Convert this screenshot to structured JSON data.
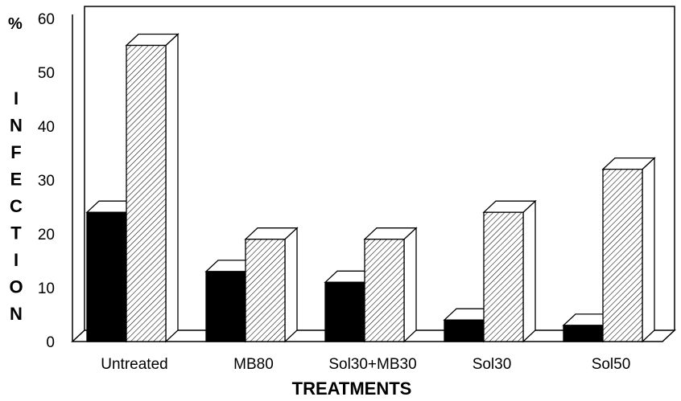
{
  "chart_data": {
    "type": "bar",
    "title": "",
    "xlabel": "TREATMENTS",
    "ylabel": "INFECTION",
    "yunit": "%",
    "ylim": [
      0,
      60
    ],
    "yticks": [
      "0",
      "10",
      "20",
      "30",
      "40",
      "50",
      "60"
    ],
    "categories": [
      "Untreated",
      "MB80",
      "Sol30+MB30",
      "Sol30",
      "Sol50"
    ],
    "series": [
      {
        "name": "solid",
        "fill": "#000000",
        "values": [
          24,
          13,
          11,
          4,
          3
        ]
      },
      {
        "name": "hatched",
        "fill": "hatch",
        "values": [
          55,
          19,
          19,
          24,
          32
        ]
      }
    ],
    "grid": false,
    "style": "3d"
  }
}
